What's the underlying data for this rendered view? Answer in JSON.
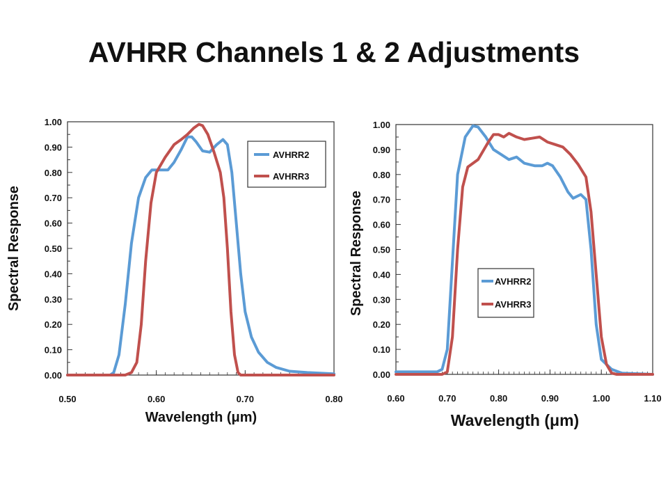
{
  "slide": {
    "title": "AVHRR Channels 1 & 2 Adjustments"
  },
  "chart_data": [
    {
      "type": "line",
      "xlabel": "Wavelength (μm)",
      "ylabel": "Spectral Response",
      "xlim": [
        0.5,
        0.8
      ],
      "ylim": [
        0,
        1
      ],
      "x_ticks": [
        "0.50",
        "0.60",
        "0.70",
        "0.80"
      ],
      "x_tick_values": [
        0.5,
        0.6,
        0.7,
        0.8
      ],
      "y_ticks": [
        "0.00",
        "0.10",
        "0.20",
        "0.30",
        "0.40",
        "0.50",
        "0.60",
        "0.70",
        "0.80",
        "0.90",
        "1.00"
      ],
      "legend_position": "top-right",
      "legend": [
        "AVHRR2",
        "AVHRR3"
      ],
      "series": [
        {
          "name": "AVHRR2",
          "color": "#5b9bd5",
          "points": [
            [
              0.5,
              0
            ],
            [
              0.548,
              0
            ],
            [
              0.552,
              0.01
            ],
            [
              0.558,
              0.08
            ],
            [
              0.565,
              0.28
            ],
            [
              0.572,
              0.52
            ],
            [
              0.58,
              0.7
            ],
            [
              0.588,
              0.78
            ],
            [
              0.595,
              0.81
            ],
            [
              0.605,
              0.81
            ],
            [
              0.613,
              0.81
            ],
            [
              0.62,
              0.84
            ],
            [
              0.628,
              0.89
            ],
            [
              0.635,
              0.94
            ],
            [
              0.64,
              0.94
            ],
            [
              0.645,
              0.92
            ],
            [
              0.652,
              0.885
            ],
            [
              0.66,
              0.88
            ],
            [
              0.668,
              0.91
            ],
            [
              0.675,
              0.93
            ],
            [
              0.68,
              0.91
            ],
            [
              0.685,
              0.8
            ],
            [
              0.69,
              0.6
            ],
            [
              0.695,
              0.4
            ],
            [
              0.7,
              0.25
            ],
            [
              0.707,
              0.15
            ],
            [
              0.715,
              0.09
            ],
            [
              0.725,
              0.05
            ],
            [
              0.735,
              0.03
            ],
            [
              0.75,
              0.015
            ],
            [
              0.77,
              0.01
            ],
            [
              0.8,
              0.005
            ]
          ]
        },
        {
          "name": "AVHRR3",
          "color": "#c0504d",
          "points": [
            [
              0.5,
              0
            ],
            [
              0.565,
              0
            ],
            [
              0.572,
              0.01
            ],
            [
              0.578,
              0.05
            ],
            [
              0.583,
              0.2
            ],
            [
              0.588,
              0.45
            ],
            [
              0.594,
              0.68
            ],
            [
              0.6,
              0.8
            ],
            [
              0.61,
              0.86
            ],
            [
              0.62,
              0.91
            ],
            [
              0.628,
              0.93
            ],
            [
              0.635,
              0.95
            ],
            [
              0.642,
              0.975
            ],
            [
              0.648,
              0.99
            ],
            [
              0.652,
              0.985
            ],
            [
              0.658,
              0.95
            ],
            [
              0.665,
              0.88
            ],
            [
              0.672,
              0.8
            ],
            [
              0.676,
              0.7
            ],
            [
              0.68,
              0.5
            ],
            [
              0.684,
              0.25
            ],
            [
              0.688,
              0.08
            ],
            [
              0.692,
              0.01
            ],
            [
              0.695,
              0
            ],
            [
              0.8,
              0
            ]
          ]
        }
      ]
    },
    {
      "type": "line",
      "xlabel": "Wavelength (μm)",
      "ylabel": "Spectral Response",
      "xlim": [
        0.6,
        1.1
      ],
      "ylim": [
        0,
        1
      ],
      "x_ticks": [
        "0.60",
        "0.70",
        "0.80",
        "0.90",
        "1.00",
        "1.10"
      ],
      "x_tick_values": [
        0.6,
        0.7,
        0.8,
        0.9,
        1.0,
        1.1
      ],
      "y_ticks": [
        "0.00",
        "0.10",
        "0.20",
        "0.30",
        "0.40",
        "0.50",
        "0.60",
        "0.70",
        "0.80",
        "0.90",
        "1.00"
      ],
      "legend_position": "bottom-left",
      "legend": [
        "AVHRR2",
        "AVHRR3"
      ],
      "series": [
        {
          "name": "AVHRR2",
          "color": "#5b9bd5",
          "points": [
            [
              0.6,
              0.01
            ],
            [
              0.68,
              0.01
            ],
            [
              0.69,
              0.02
            ],
            [
              0.7,
              0.1
            ],
            [
              0.71,
              0.45
            ],
            [
              0.72,
              0.8
            ],
            [
              0.735,
              0.95
            ],
            [
              0.75,
              0.995
            ],
            [
              0.76,
              0.99
            ],
            [
              0.775,
              0.95
            ],
            [
              0.79,
              0.9
            ],
            [
              0.805,
              0.88
            ],
            [
              0.82,
              0.86
            ],
            [
              0.835,
              0.87
            ],
            [
              0.85,
              0.845
            ],
            [
              0.87,
              0.835
            ],
            [
              0.885,
              0.835
            ],
            [
              0.895,
              0.845
            ],
            [
              0.905,
              0.835
            ],
            [
              0.92,
              0.79
            ],
            [
              0.935,
              0.73
            ],
            [
              0.945,
              0.705
            ],
            [
              0.96,
              0.72
            ],
            [
              0.97,
              0.7
            ],
            [
              0.98,
              0.5
            ],
            [
              0.99,
              0.2
            ],
            [
              1.0,
              0.06
            ],
            [
              1.02,
              0.02
            ],
            [
              1.04,
              0.005
            ],
            [
              1.1,
              0
            ]
          ]
        },
        {
          "name": "AVHRR3",
          "color": "#c0504d",
          "points": [
            [
              0.6,
              0
            ],
            [
              0.69,
              0
            ],
            [
              0.7,
              0.01
            ],
            [
              0.71,
              0.15
            ],
            [
              0.72,
              0.5
            ],
            [
              0.73,
              0.75
            ],
            [
              0.74,
              0.83
            ],
            [
              0.76,
              0.86
            ],
            [
              0.78,
              0.93
            ],
            [
              0.79,
              0.96
            ],
            [
              0.8,
              0.96
            ],
            [
              0.81,
              0.95
            ],
            [
              0.82,
              0.965
            ],
            [
              0.835,
              0.95
            ],
            [
              0.85,
              0.94
            ],
            [
              0.865,
              0.945
            ],
            [
              0.88,
              0.95
            ],
            [
              0.895,
              0.93
            ],
            [
              0.91,
              0.92
            ],
            [
              0.925,
              0.91
            ],
            [
              0.94,
              0.88
            ],
            [
              0.955,
              0.84
            ],
            [
              0.97,
              0.79
            ],
            [
              0.98,
              0.65
            ],
            [
              0.99,
              0.4
            ],
            [
              1.0,
              0.15
            ],
            [
              1.01,
              0.04
            ],
            [
              1.02,
              0.005
            ],
            [
              1.03,
              0
            ],
            [
              1.1,
              0
            ]
          ]
        }
      ]
    }
  ]
}
